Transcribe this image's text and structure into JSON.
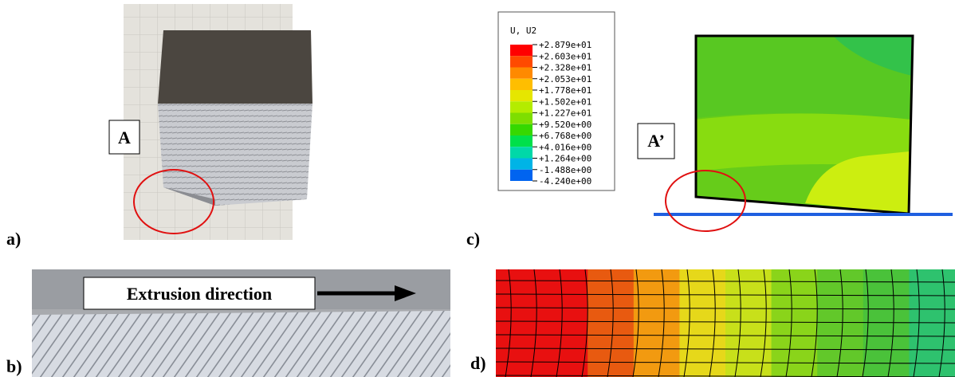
{
  "panels": [
    {
      "label": "a)",
      "callout": "A"
    },
    {
      "label": "b)",
      "callout": "Extrusion direction"
    },
    {
      "label": "c)",
      "callout": "A’",
      "legend": {
        "title": "U, U2",
        "values": [
          "+2.879e+01",
          "+2.603e+01",
          "+2.328e+01",
          "+2.053e+01",
          "+1.778e+01",
          "+1.502e+01",
          "+1.227e+01",
          "+9.520e+00",
          "+6.768e+00",
          "+4.016e+00",
          "+1.264e+00",
          "-1.488e+00",
          "-4.240e+00"
        ]
      }
    },
    {
      "label": "d)"
    }
  ]
}
